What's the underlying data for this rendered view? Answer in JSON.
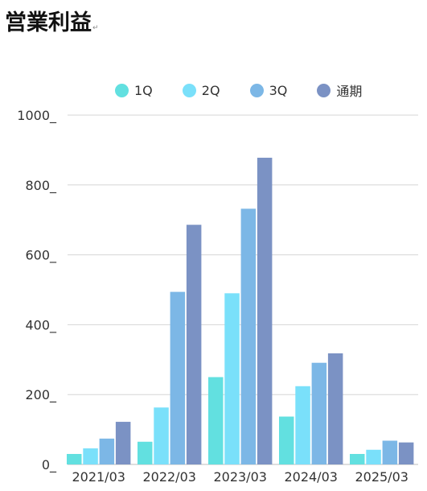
{
  "page": {
    "title": "営業利益",
    "return_mark": "↵"
  },
  "chart_data": {
    "type": "bar",
    "title": "",
    "xlabel": "",
    "ylabel": "",
    "ylim": [
      0,
      1000
    ],
    "yticks": [
      0,
      200,
      400,
      600,
      800,
      1000
    ],
    "ytick_labels": [
      "0_",
      "200_",
      "400_",
      "600_",
      "800_",
      "1000_"
    ],
    "grid": true,
    "legend_position": "top",
    "categories": [
      "2021/03",
      "2022/03",
      "2023/03",
      "2024/03",
      "2025/03"
    ],
    "series": [
      {
        "name": "1Q",
        "color": "#62e0e0",
        "values": [
          30,
          65,
          250,
          137,
          30
        ]
      },
      {
        "name": "2Q",
        "color": "#7ae0fa",
        "values": [
          46,
          163,
          490,
          224,
          42
        ]
      },
      {
        "name": "3Q",
        "color": "#7cb7e6",
        "values": [
          74,
          494,
          732,
          291,
          68
        ]
      },
      {
        "name": "通期",
        "color": "#7b92c4",
        "values": [
          122,
          686,
          878,
          318,
          63
        ]
      }
    ]
  }
}
